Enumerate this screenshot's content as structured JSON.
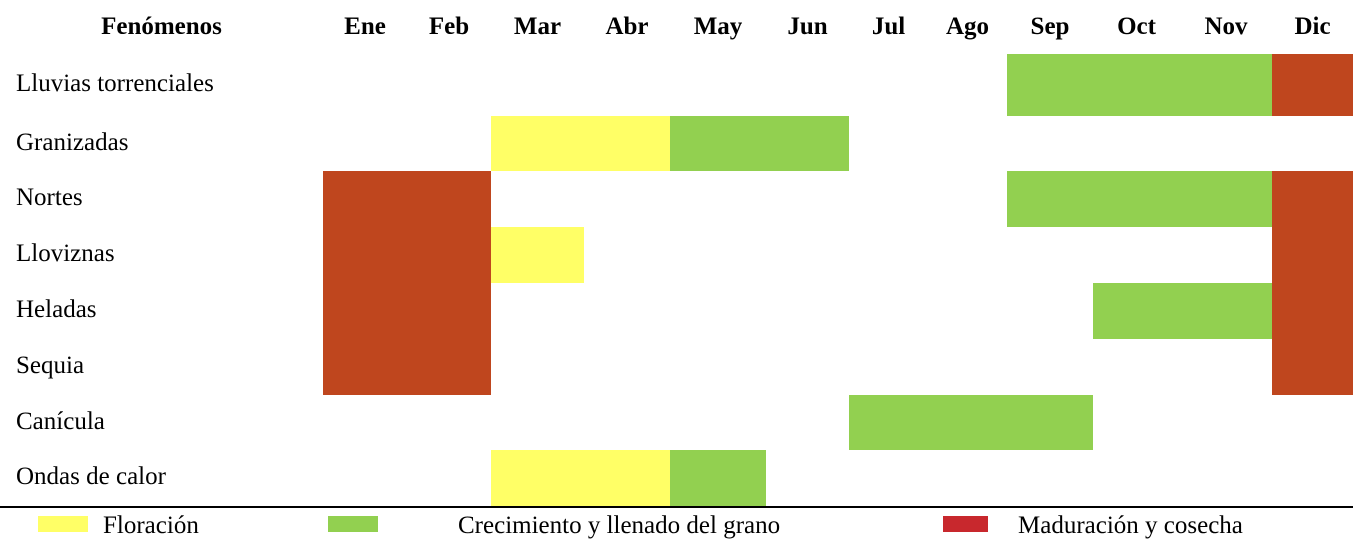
{
  "header": [
    "Fenómenos",
    "Ene",
    "Feb",
    "Mar",
    "Abr",
    "May",
    "Jun",
    "Jul",
    "Ago",
    "Sep",
    "Oct",
    "Nov",
    "Dic"
  ],
  "rows": [
    {
      "label": "Lluvias torrenciales",
      "cells": [
        null,
        null,
        null,
        null,
        null,
        null,
        null,
        null,
        "#92D050",
        "#92D050",
        "#92D050",
        "#BF461E"
      ]
    },
    {
      "label": "Granizadas",
      "cells": [
        null,
        null,
        "#FFFF66",
        "#FFFF66",
        "#92D050",
        "#92D050",
        null,
        null,
        null,
        null,
        null,
        null
      ]
    },
    {
      "label": "Nortes",
      "cells": [
        "#BF461E",
        "#BF461E",
        null,
        null,
        null,
        null,
        null,
        null,
        "#92D050",
        "#92D050",
        "#92D050",
        "#BF461E"
      ]
    },
    {
      "label": "Lloviznas",
      "cells": [
        "#BF461E",
        "#BF461E",
        "#FFFF66",
        null,
        null,
        null,
        null,
        null,
        null,
        null,
        null,
        "#BF461E"
      ]
    },
    {
      "label": "Heladas",
      "cells": [
        "#BF461E",
        "#BF461E",
        null,
        null,
        null,
        null,
        null,
        null,
        null,
        "#92D050",
        "#92D050",
        "#BF461E"
      ]
    },
    {
      "label": "Sequia",
      "cells": [
        "#BF461E",
        "#BF461E",
        null,
        null,
        null,
        null,
        null,
        null,
        null,
        null,
        null,
        "#BF461E"
      ]
    },
    {
      "label": "Canícula",
      "cells": [
        null,
        null,
        null,
        null,
        null,
        null,
        "#92D050",
        "#92D050",
        "#92D050",
        null,
        null,
        null
      ]
    },
    {
      "label": "Ondas de calor",
      "cells": [
        null,
        null,
        "#FFFF66",
        "#FFFF66",
        "#92D050",
        null,
        null,
        null,
        null,
        null,
        null,
        null
      ]
    }
  ],
  "legend": [
    {
      "label": "Floración",
      "color": "#FFFF66"
    },
    {
      "label": "Crecimiento y llenado del grano",
      "color": "#92D050"
    },
    {
      "label": "Maduración y cosecha",
      "color": "#C8282D"
    }
  ]
}
